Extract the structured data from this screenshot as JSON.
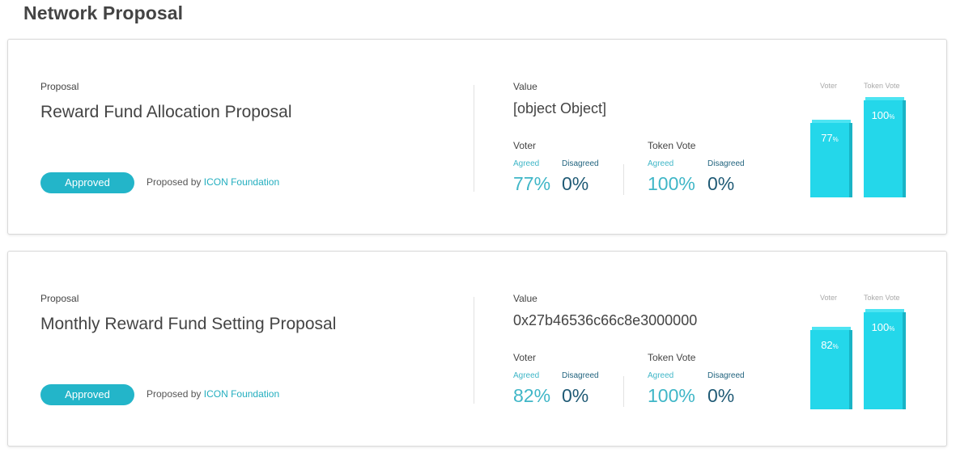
{
  "page": {
    "title": "Network Proposal"
  },
  "proposals": [
    {
      "label": "Proposal",
      "name": "Reward Fund Allocation Proposal",
      "status": "Approved",
      "proposed_by_prefix": "Proposed by",
      "proposer": "ICON Foundation",
      "value_label": "Value",
      "value": "[object Object]",
      "voter": {
        "label": "Voter",
        "agreed_label": "Agreed",
        "disagreed_label": "Disagreed",
        "agreed": "77%",
        "disagreed": "0%"
      },
      "token_vote": {
        "label": "Token Vote",
        "agreed_label": "Agreed",
        "disagreed_label": "Disagreed",
        "agreed": "100%",
        "disagreed": "0%"
      },
      "chart": {
        "voter_caption": "Voter",
        "token_caption": "Token Vote",
        "voter_value": "77",
        "token_value": "100",
        "unit": "%",
        "voter_fraction": 0.77,
        "token_fraction": 1.0
      }
    },
    {
      "label": "Proposal",
      "name": "Monthly Reward Fund Setting Proposal",
      "status": "Approved",
      "proposed_by_prefix": "Proposed by",
      "proposer": "ICON Foundation",
      "value_label": "Value",
      "value": "0x27b46536c66c8e3000000",
      "voter": {
        "label": "Voter",
        "agreed_label": "Agreed",
        "disagreed_label": "Disagreed",
        "agreed": "82%",
        "disagreed": "0%"
      },
      "token_vote": {
        "label": "Token Vote",
        "agreed_label": "Agreed",
        "disagreed_label": "Disagreed",
        "agreed": "100%",
        "disagreed": "0%"
      },
      "chart": {
        "voter_caption": "Voter",
        "token_caption": "Token Vote",
        "voter_value": "82",
        "token_value": "100",
        "unit": "%",
        "voter_fraction": 0.82,
        "token_fraction": 1.0
      }
    }
  ],
  "colors": {
    "accent": "#23b5c9",
    "bar": "#24d7ea",
    "agreed_text": "#3fb6c7",
    "disagreed_text": "#1f5a75"
  }
}
